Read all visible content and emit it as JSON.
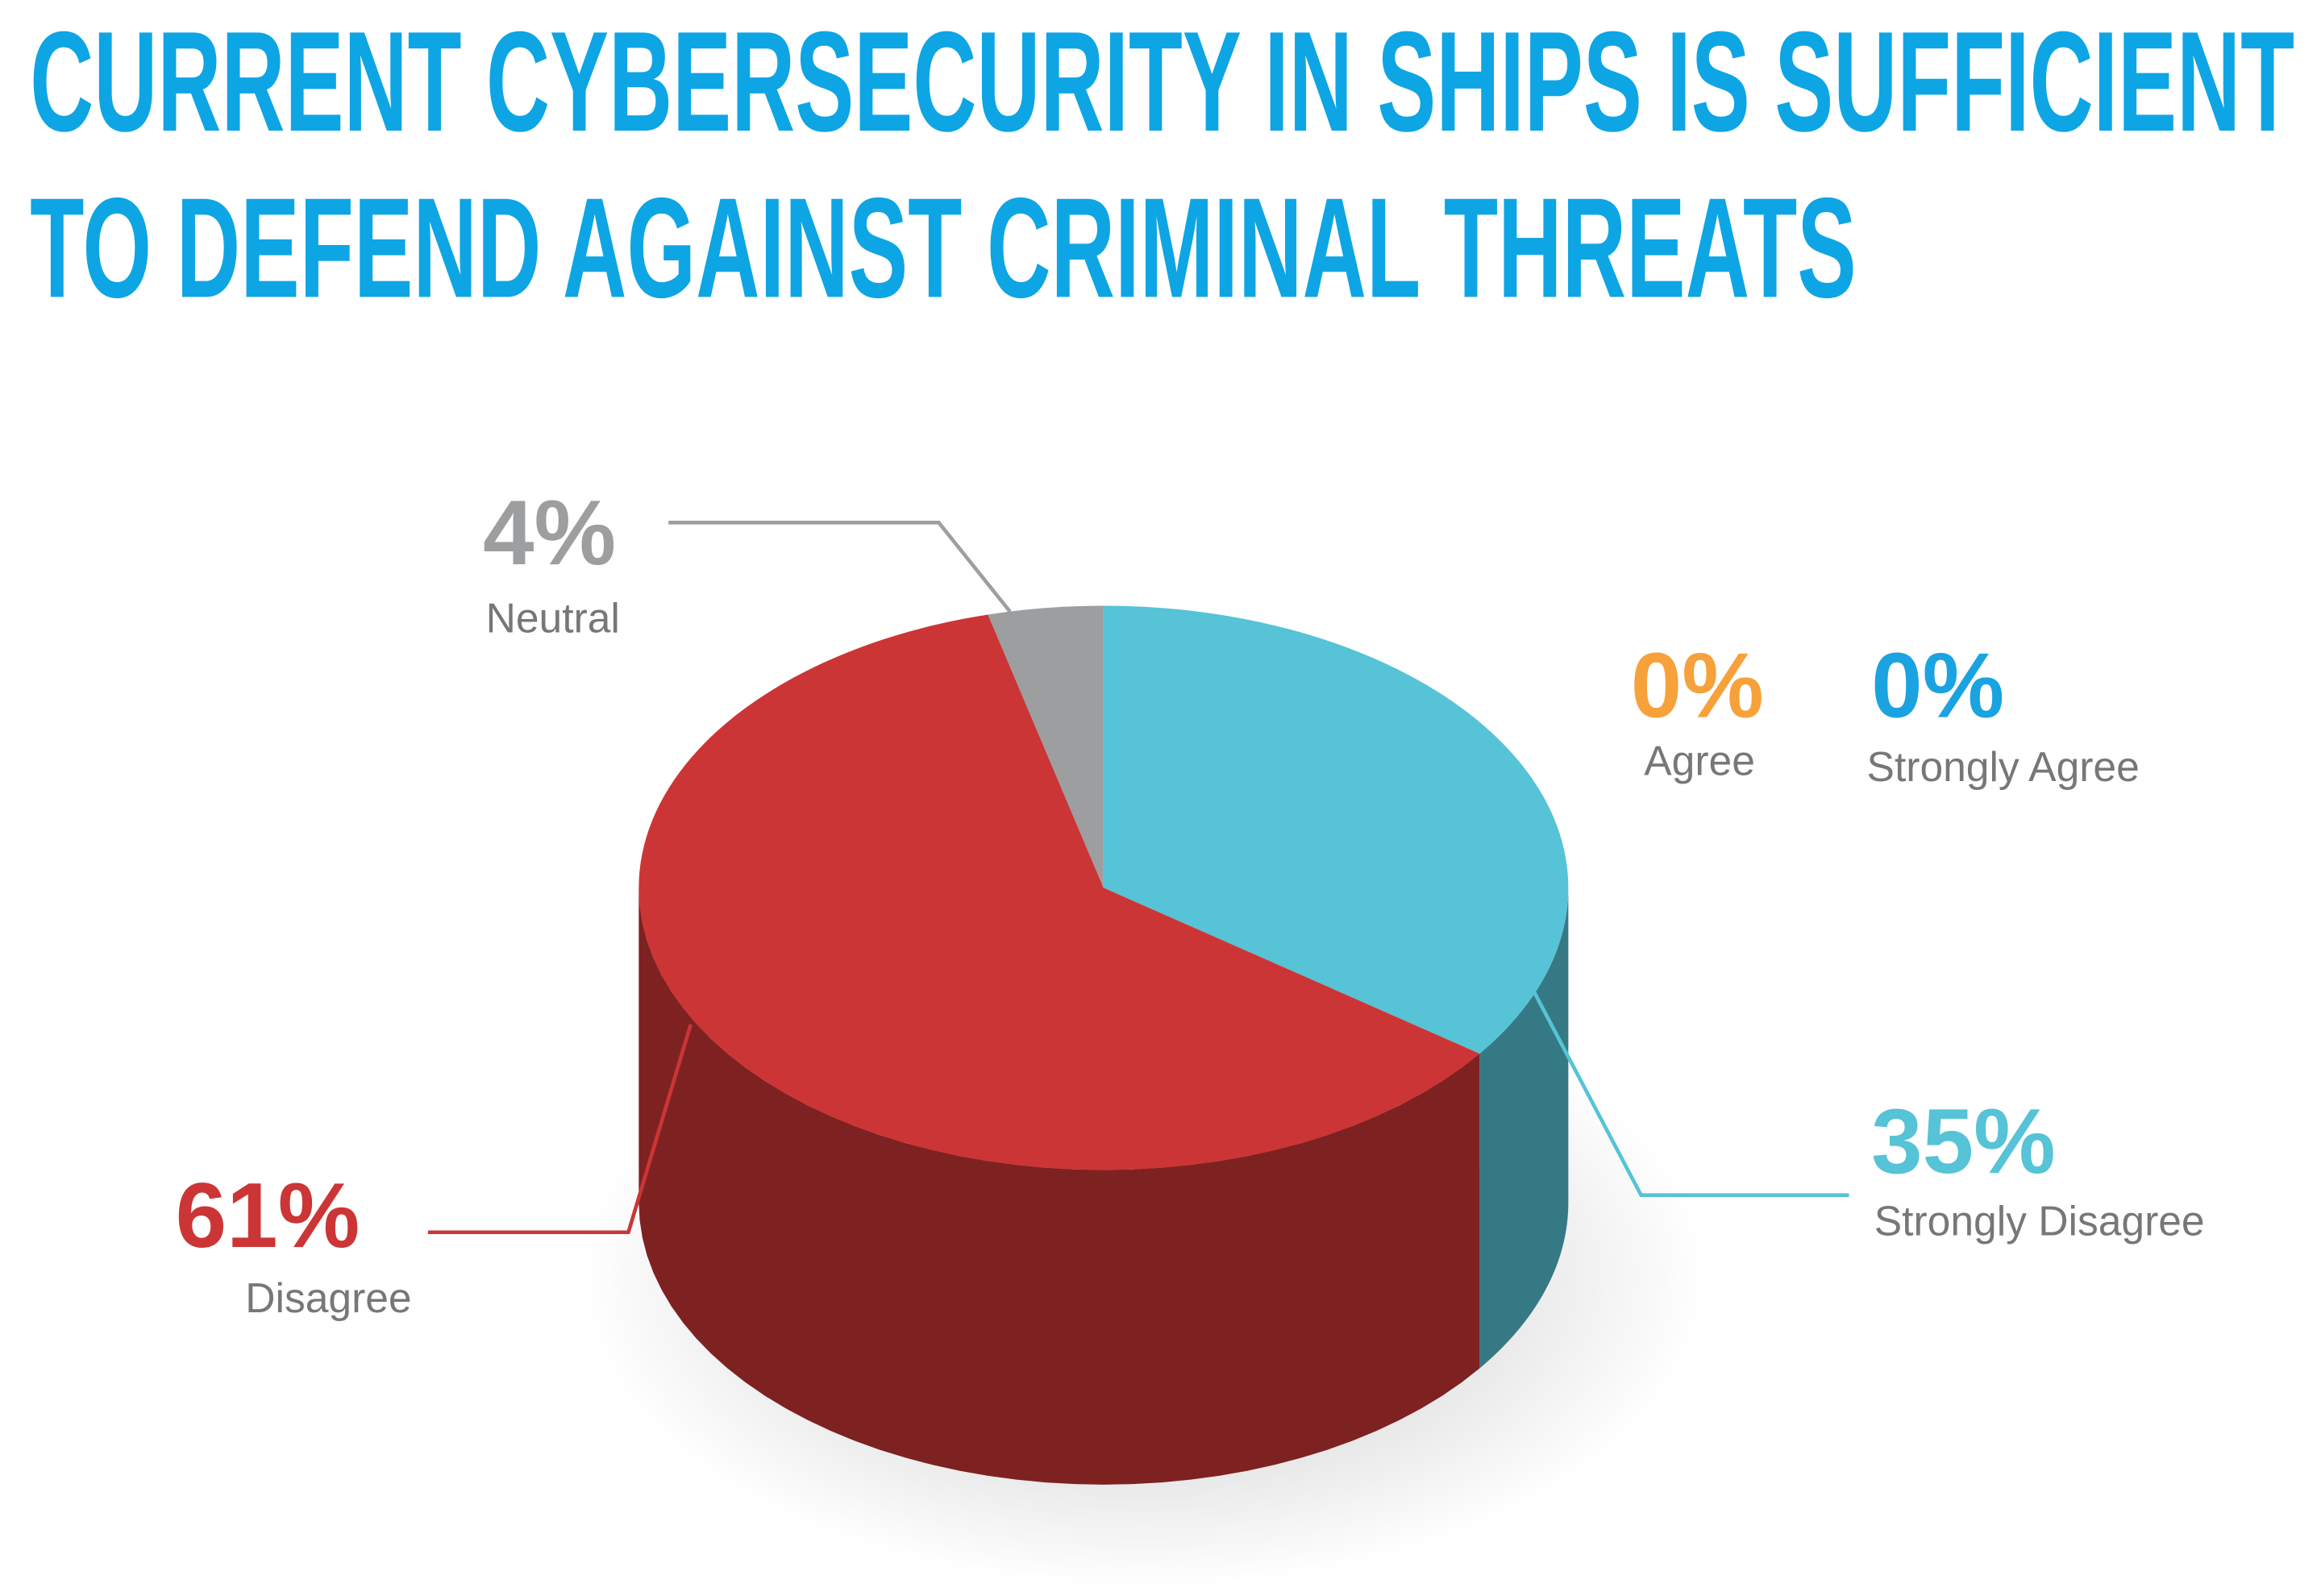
{
  "chart_data": {
    "type": "pie",
    "title": [
      "CURRENT CYBERSECURITY IN SHIPS IS SUFFICIENT",
      "TO DEFEND AGAINST CRIMINAL THREATS"
    ],
    "categories": [
      "Strongly Disagree",
      "Disagree",
      "Neutral",
      "Agree",
      "Strongly Agree"
    ],
    "values": [
      35,
      61,
      4,
      0,
      0
    ],
    "value_labels": [
      "35%",
      "61%",
      "4%",
      "0%",
      "0%"
    ],
    "colors": [
      "#56c3d6",
      "#cc3535",
      "#9d9ea0",
      "#f7a13a",
      "#1aa3e0"
    ],
    "title_color": "#0ea5e4"
  }
}
